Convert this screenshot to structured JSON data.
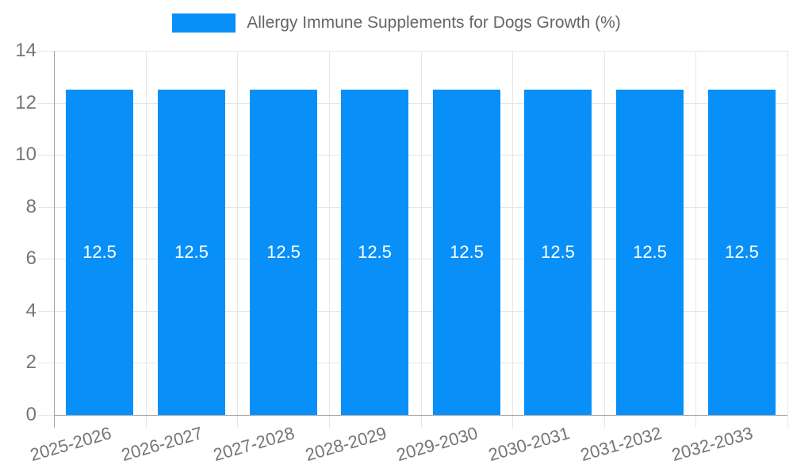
{
  "chart_data": {
    "type": "bar",
    "title": "",
    "legend": {
      "position": "top",
      "label": "Allergy Immune Supplements for Dogs Growth (%)"
    },
    "categories": [
      "2025-2026",
      "2026-2027",
      "2027-2028",
      "2028-2029",
      "2029-2030",
      "2030-2031",
      "2031-2032",
      "2032-2033"
    ],
    "series": [
      {
        "name": "Allergy Immune Supplements for Dogs Growth (%)",
        "values": [
          12.5,
          12.5,
          12.5,
          12.5,
          12.5,
          12.5,
          12.5,
          12.5
        ]
      }
    ],
    "bar_value_labels": [
      "12.5",
      "12.5",
      "12.5",
      "12.5",
      "12.5",
      "12.5",
      "12.5",
      "12.5"
    ],
    "xlabel": "",
    "ylabel": "",
    "ylim": [
      0,
      14
    ],
    "yticks": [
      0,
      2,
      4,
      6,
      8,
      10,
      12,
      14
    ],
    "ytick_labels": [
      "0",
      "2",
      "4",
      "6",
      "8",
      "10",
      "12",
      "14"
    ],
    "grid": true,
    "legend_shown": true
  },
  "colors": {
    "bar": "#0890F8",
    "grid_line": "#e6e6e6",
    "axis_line": "#a0a0a0",
    "tick_label": "#757575",
    "legend_text": "#666666",
    "bar_value_label": "#ffffff",
    "background": "#ffffff"
  }
}
